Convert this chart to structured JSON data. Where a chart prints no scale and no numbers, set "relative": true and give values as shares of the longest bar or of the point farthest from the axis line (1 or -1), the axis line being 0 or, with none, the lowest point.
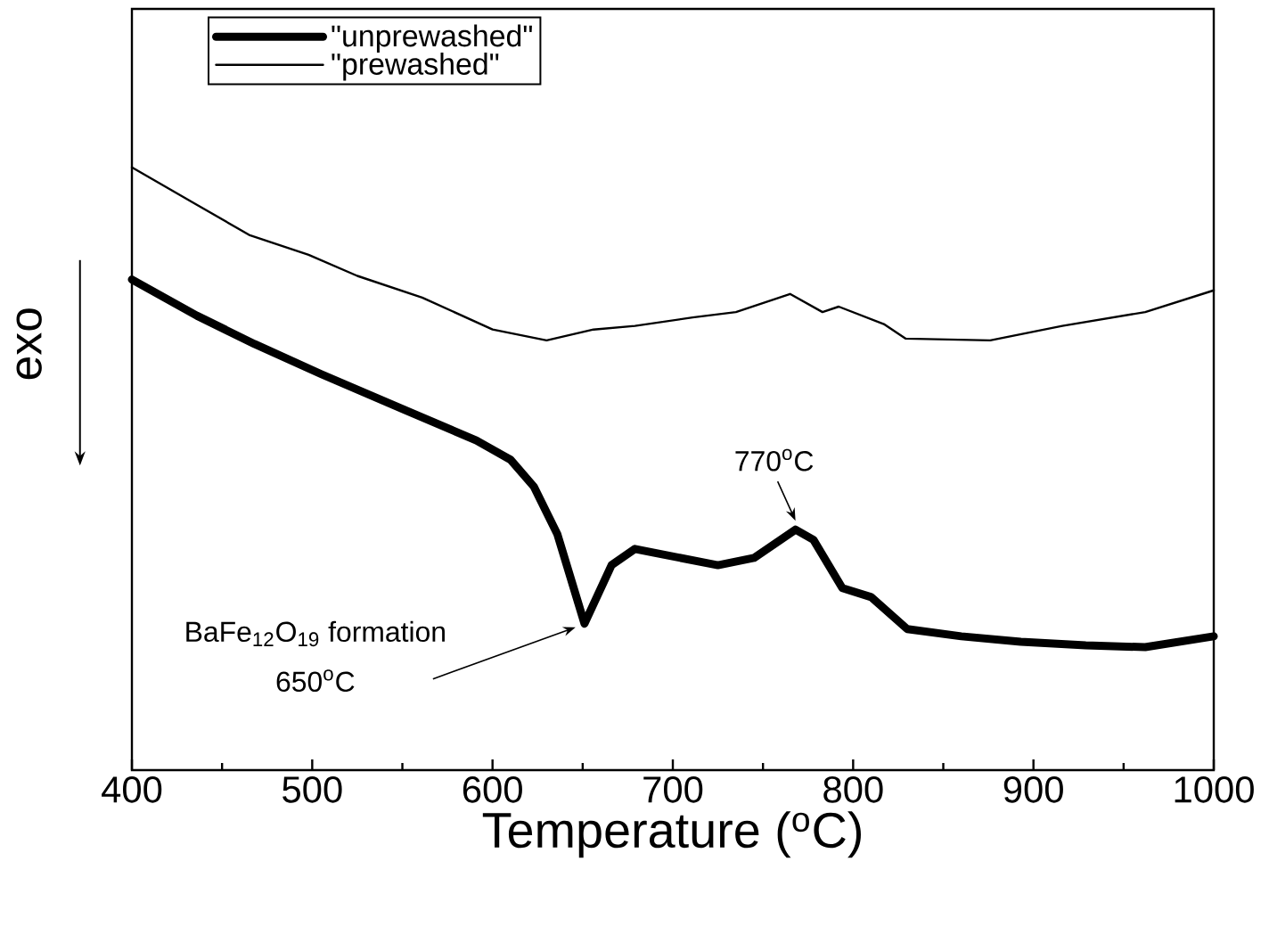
{
  "chart_data": {
    "type": "line",
    "relative": true,
    "xlabel": "Temperature ($^{o}$C)",
    "ylabel": "exo",
    "xlim": [
      400,
      1000
    ],
    "xticks": [
      400,
      500,
      600,
      700,
      800,
      900,
      1000
    ],
    "legend": "top left",
    "grid": false,
    "marker": "none",
    "line_style": "solid",
    "series": [
      {
        "name": "\"unprewashed\"",
        "color": "#000000",
        "x": [
          400,
          436,
          468,
          505,
          551,
          591,
          610,
          623,
          636,
          651,
          666,
          679,
          689,
          725,
          745,
          768,
          778,
          794,
          810,
          830,
          860,
          893,
          929,
          962,
          1000
        ],
        "values": [
          0.814,
          0.754,
          0.707,
          0.657,
          0.598,
          0.547,
          0.515,
          0.47,
          0.391,
          0.243,
          0.34,
          0.367,
          0.361,
          0.34,
          0.352,
          0.399,
          0.382,
          0.302,
          0.287,
          0.234,
          0.222,
          0.213,
          0.207,
          0.204,
          0.222
        ]
      },
      {
        "name": "\"prewashed\"",
        "color": "#000000",
        "x": [
          400,
          436,
          465,
          498,
          525,
          561,
          600,
          630,
          656,
          679,
          711,
          735,
          765,
          783,
          792,
          817,
          829,
          876,
          916,
          962,
          1000
        ],
        "values": [
          1.0,
          0.938,
          0.888,
          0.855,
          0.82,
          0.784,
          0.731,
          0.713,
          0.731,
          0.737,
          0.751,
          0.76,
          0.79,
          0.76,
          0.769,
          0.74,
          0.716,
          0.713,
          0.737,
          0.76,
          0.796
        ]
      }
    ],
    "annotations": [
      {
        "text": "BaFe$_{12}$O$_{19}$ formation",
        "x": 650,
        "y": 0.243
      },
      "650$^{o}$C",
      {
        "text": "770$^{o}$C",
        "x": 770,
        "y": 0.399
      }
    ]
  }
}
